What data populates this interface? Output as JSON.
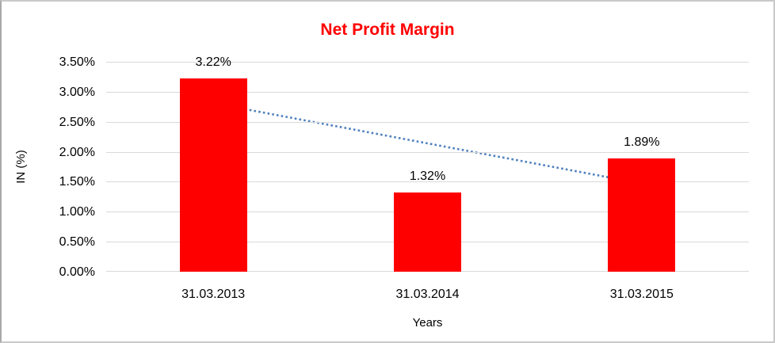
{
  "chart_data": {
    "type": "bar",
    "title": "Net Profit Margin",
    "title_color": "#ff0000",
    "categories": [
      "31.03.2013",
      "31.03.2014",
      "31.03.2015"
    ],
    "values": [
      3.22,
      1.32,
      1.89
    ],
    "data_labels": [
      "3.22%",
      "1.32%",
      "1.89%"
    ],
    "bar_color": "#ff0000",
    "xlabel": "Years",
    "ylabel": "IN (%)",
    "ylim": [
      0,
      3.5
    ],
    "ytick_step": 0.5,
    "ytick_labels": [
      "0.00%",
      "0.50%",
      "1.00%",
      "1.50%",
      "2.00%",
      "2.50%",
      "3.00%",
      "3.50%"
    ],
    "grid": true,
    "gridline_color": "#d9d9d9",
    "legend_position": "none",
    "trendline": {
      "style": "dotted",
      "color": "#4f81bd",
      "start_category_index": 0,
      "end_category_index": 2,
      "start_value": 2.81,
      "end_value": 1.47
    }
  }
}
